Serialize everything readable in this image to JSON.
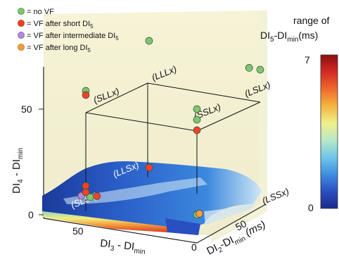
{
  "legend": [
    {
      "label": "= no VF",
      "color": "#7ac96a"
    },
    {
      "label": "= VF after short DI",
      "sub": "5",
      "color": "#ee4422"
    },
    {
      "label": "= VF after intermediate DI",
      "sub": "5",
      "color": "#b28ad6"
    },
    {
      "label": "= VF after long DI",
      "sub": "5",
      "color": "#f0a040"
    }
  ],
  "colorbar": {
    "title_line1": "range of",
    "title_line2_a": "DI",
    "title_line2_sub1": "5",
    "title_line2_b": "-DI",
    "title_line2_sub2": "min",
    "title_line2_c": "(ms)",
    "max_label": "7",
    "min_label": "0",
    "colors": [
      "#1a2a8a",
      "#2a4fc0",
      "#3f8ee0",
      "#6fc7e8",
      "#b7e8c8",
      "#f0f08a",
      "#f5b540",
      "#ee6a2a",
      "#d42a22",
      "#8a1010"
    ]
  },
  "axes": {
    "z_label_a": "DI",
    "z_label_sub1": "4",
    "z_label_b": " - DI",
    "z_label_sub2": "min",
    "x_label_a": "DI",
    "x_label_sub1": "3",
    "x_label_b": " - DI",
    "x_label_sub2": "min",
    "y_label_a": "DI",
    "y_label_sub1": "2",
    "y_label_b": "-DI",
    "y_label_sub2": "min",
    "y_label_unit": " (ms)",
    "z_ticks": [
      "50",
      "0"
    ],
    "x_ticks": [
      "50",
      "0"
    ],
    "y_ticks": [
      "50"
    ]
  },
  "regions": [
    "(LLLx)",
    "(SLLx)",
    "(LSLx)",
    "(SSLx)",
    "(LLSx)",
    "(SLSx)",
    "(LSSx)"
  ],
  "chart_data": {
    "type": "scatter",
    "points": [
      {
        "x": 50,
        "y": 0,
        "z": 50,
        "outcome": "no VF",
        "color": "#7ac96a"
      },
      {
        "x": 50,
        "y": 0,
        "z": 48,
        "outcome": "VF after short DI5",
        "color": "#ee4422"
      },
      {
        "x": 0,
        "y": 50,
        "z": 55,
        "outcome": "no VF",
        "color": "#7ac96a"
      },
      {
        "x": 5,
        "y": 50,
        "z": 55,
        "outcome": "no VF",
        "color": "#7ac96a"
      },
      {
        "x": 50,
        "y": 50,
        "z": 60,
        "outcome": "no VF",
        "color": "#7ac96a"
      },
      {
        "x": 0,
        "y": 0,
        "z": 50,
        "outcome": "no VF",
        "color": "#7ac96a"
      },
      {
        "x": 0,
        "y": 0,
        "z": 45,
        "outcome": "no VF",
        "color": "#7ac96a"
      },
      {
        "x": 0,
        "y": 0,
        "z": 40,
        "outcome": "VF after short DI5",
        "color": "#ee4422"
      },
      {
        "x": 50,
        "y": 50,
        "z": 0,
        "outcome": "VF after short DI5",
        "color": "#ee4422"
      },
      {
        "x": 50,
        "y": 0,
        "z": 5,
        "outcome": "VF after short DI5",
        "color": "#ee4422"
      },
      {
        "x": 48,
        "y": 0,
        "z": 0,
        "outcome": "no VF",
        "color": "#7ac96a"
      },
      {
        "x": 52,
        "y": 0,
        "z": 0,
        "outcome": "VF after intermediate DI5",
        "color": "#b28ad6"
      },
      {
        "x": 50,
        "y": 0,
        "z": 2,
        "outcome": "VF after short DI5",
        "color": "#ee4422"
      },
      {
        "x": 45,
        "y": 0,
        "z": 1,
        "outcome": "VF after short DI5",
        "color": "#ee4422"
      },
      {
        "x": 0,
        "y": 0,
        "z": 0,
        "outcome": "no VF",
        "color": "#7ac96a"
      },
      {
        "x": 0,
        "y": 2,
        "z": 0,
        "outcome": "VF after long DI5",
        "color": "#f0a040"
      }
    ]
  }
}
